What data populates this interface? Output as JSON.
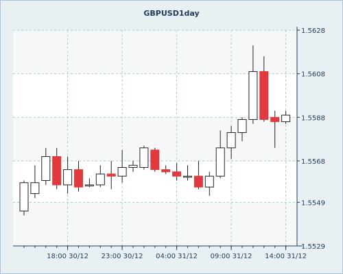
{
  "chart_data": {
    "type": "candlestick",
    "title": "GBPUSD1day",
    "xlabel": "",
    "ylabel": "",
    "ylim": [
      1.5529,
      1.5628
    ],
    "y_ticks": [
      "1.5529",
      "1.5549",
      "1.5568",
      "1.5588",
      "1.5608",
      "1.5628"
    ],
    "x_tick_labels": [
      "18:00 30/12",
      "23:00 30/12",
      "04:00 31/12",
      "09:00 31/12",
      "14:00 31/12"
    ],
    "x_tick_candle_index": [
      4,
      9,
      14,
      19,
      24
    ],
    "grid": true,
    "legend": "none",
    "colors": {
      "up_fill": "#ffffff",
      "down_fill": "#e0393e",
      "wick": "#222222",
      "grid": "#9fd0d0",
      "band_a": "#ffffff",
      "band_b": "#f5f7f8",
      "axis": "#1f3b57"
    },
    "candles": [
      {
        "open": 1.5545,
        "high": 1.5559,
        "low": 1.5543,
        "close": 1.5558
      },
      {
        "open": 1.5553,
        "high": 1.5566,
        "low": 1.5551,
        "close": 1.5558
      },
      {
        "open": 1.5559,
        "high": 1.5574,
        "low": 1.5557,
        "close": 1.557
      },
      {
        "open": 1.557,
        "high": 1.5574,
        "low": 1.5555,
        "close": 1.5557
      },
      {
        "open": 1.5557,
        "high": 1.557,
        "low": 1.5553,
        "close": 1.5564
      },
      {
        "open": 1.5564,
        "high": 1.5568,
        "low": 1.5554,
        "close": 1.5556
      },
      {
        "open": 1.5557,
        "high": 1.556,
        "low": 1.5556,
        "close": 1.5557
      },
      {
        "open": 1.5557,
        "high": 1.5566,
        "low": 1.5556,
        "close": 1.5562
      },
      {
        "open": 1.5562,
        "high": 1.5568,
        "low": 1.5555,
        "close": 1.5561
      },
      {
        "open": 1.5561,
        "high": 1.5573,
        "low": 1.5558,
        "close": 1.5565
      },
      {
        "open": 1.5565,
        "high": 1.5568,
        "low": 1.5563,
        "close": 1.5566
      },
      {
        "open": 1.5565,
        "high": 1.5575,
        "low": 1.5564,
        "close": 1.5574
      },
      {
        "open": 1.5573,
        "high": 1.5574,
        "low": 1.5563,
        "close": 1.5564
      },
      {
        "open": 1.5564,
        "high": 1.5566,
        "low": 1.5562,
        "close": 1.5563
      },
      {
        "open": 1.5563,
        "high": 1.5567,
        "low": 1.5559,
        "close": 1.5561
      },
      {
        "open": 1.5561,
        "high": 1.5566,
        "low": 1.5559,
        "close": 1.5561
      },
      {
        "open": 1.5561,
        "high": 1.5568,
        "low": 1.5555,
        "close": 1.5556
      },
      {
        "open": 1.5556,
        "high": 1.5563,
        "low": 1.5552,
        "close": 1.5561
      },
      {
        "open": 1.5561,
        "high": 1.5582,
        "low": 1.556,
        "close": 1.5574
      },
      {
        "open": 1.5574,
        "high": 1.5584,
        "low": 1.5569,
        "close": 1.5581
      },
      {
        "open": 1.5581,
        "high": 1.5588,
        "low": 1.5577,
        "close": 1.5587
      },
      {
        "open": 1.5587,
        "high": 1.5621,
        "low": 1.5585,
        "close": 1.5609
      },
      {
        "open": 1.5609,
        "high": 1.5616,
        "low": 1.5586,
        "close": 1.5587
      },
      {
        "open": 1.5588,
        "high": 1.5591,
        "low": 1.5574,
        "close": 1.5586
      },
      {
        "open": 1.5586,
        "high": 1.5591,
        "low": 1.5585,
        "close": 1.5589
      }
    ]
  }
}
